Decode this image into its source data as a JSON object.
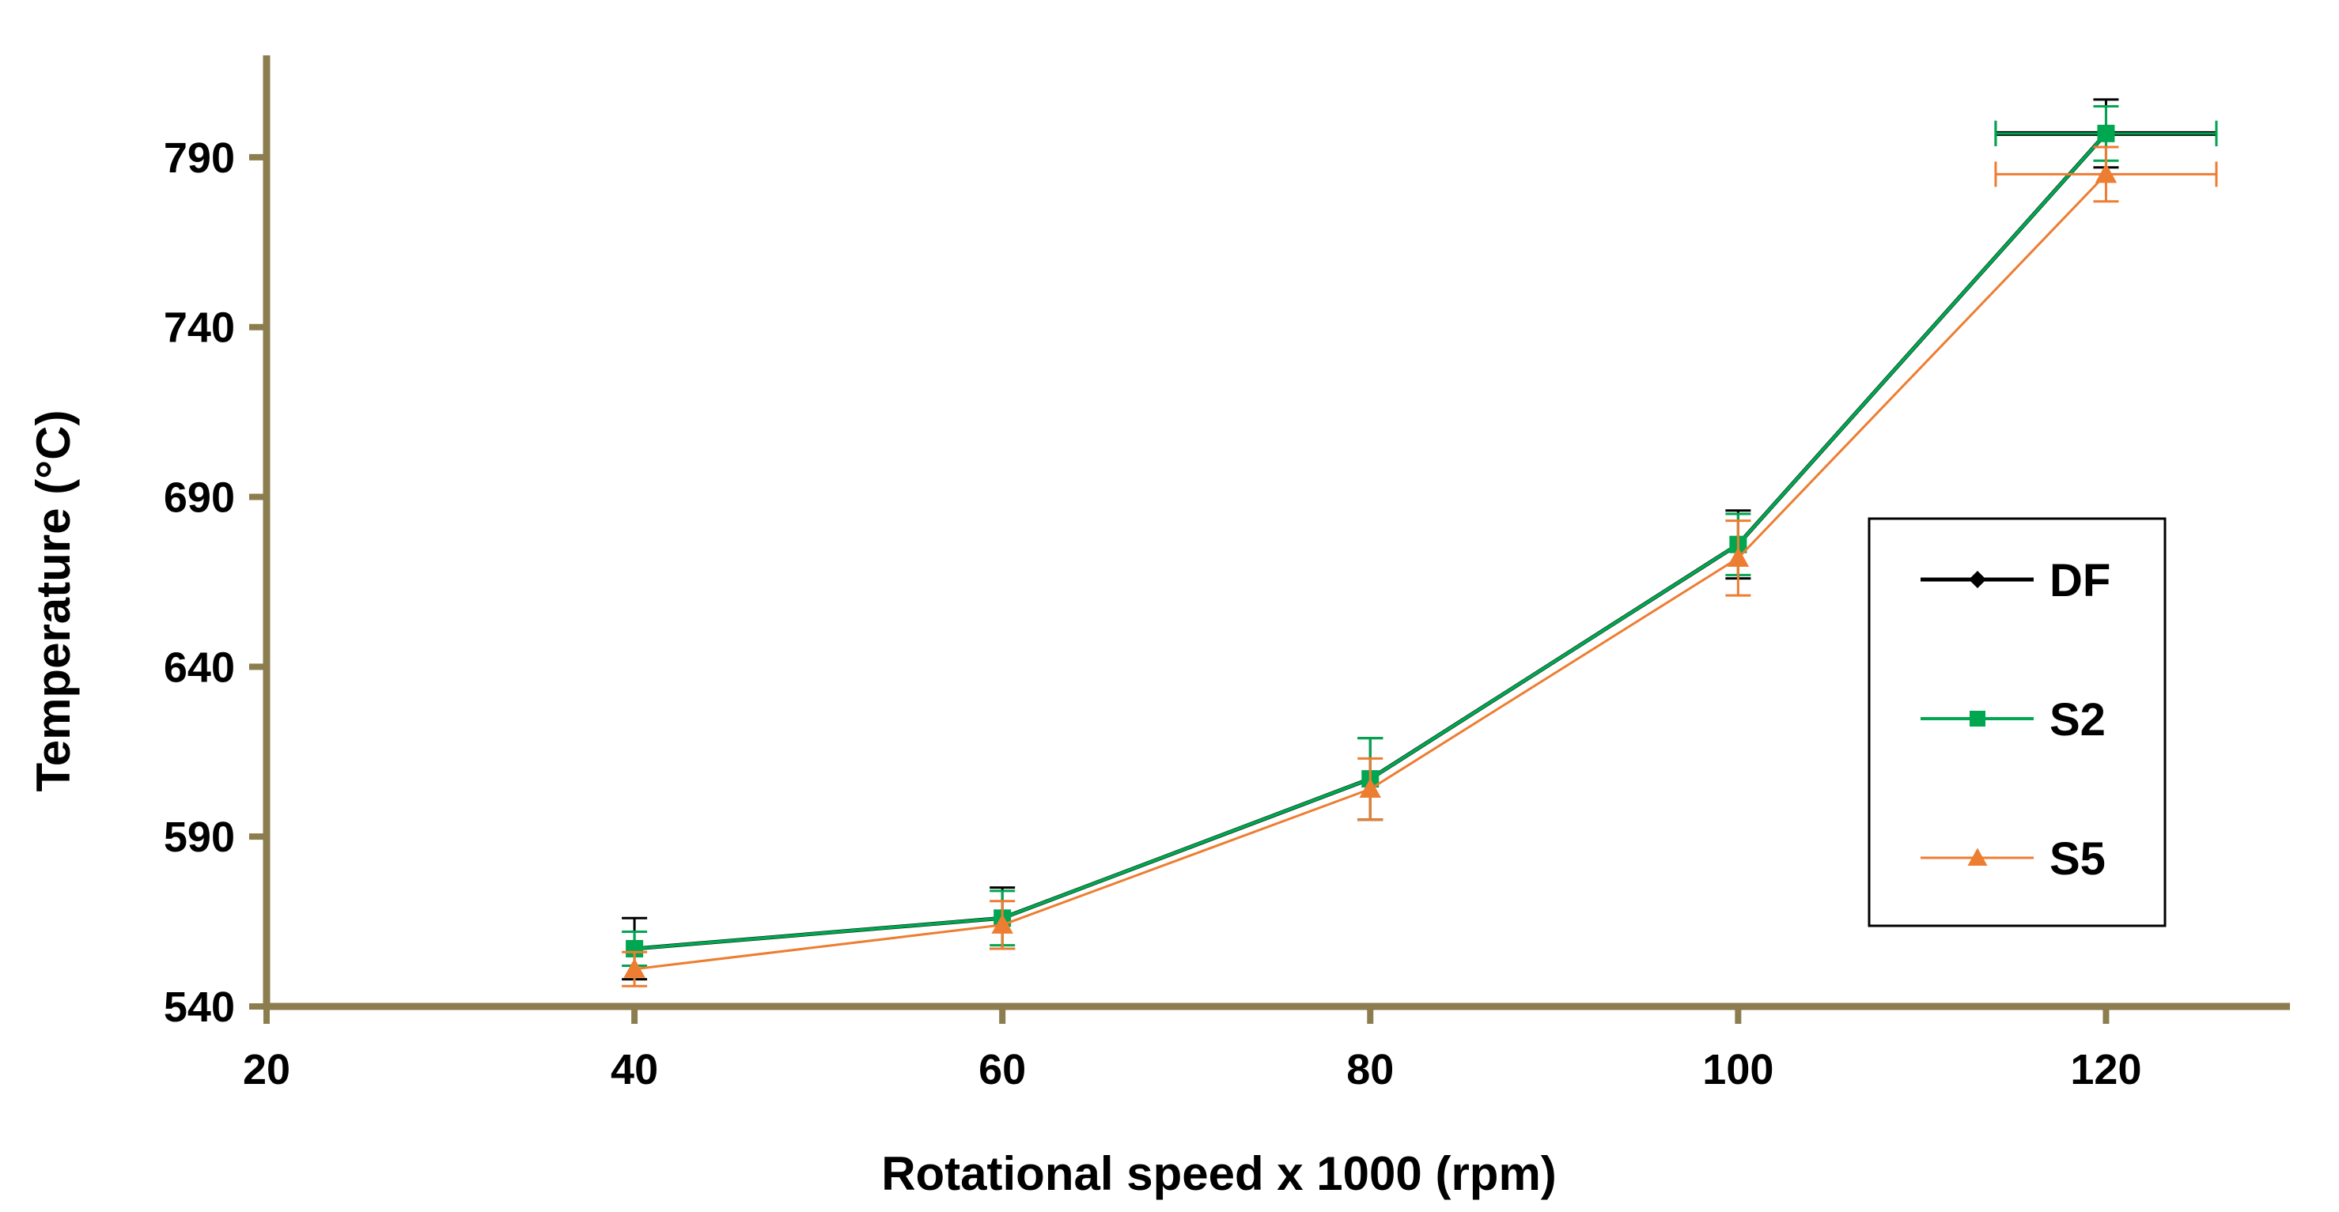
{
  "chart_data": {
    "type": "line",
    "title": "",
    "xlabel": "Rotational speed x 1000 (rpm)",
    "ylabel": "Temperature (°C)",
    "xlim": [
      20,
      130
    ],
    "ylim": [
      540,
      820
    ],
    "x_ticks": [
      20,
      40,
      60,
      80,
      100,
      120
    ],
    "y_ticks": [
      540,
      590,
      640,
      690,
      740,
      790
    ],
    "grid": false,
    "legend_position": "right",
    "axis_color": "#8C7D4E",
    "x": [
      40,
      60,
      80,
      100,
      120
    ],
    "series": [
      {
        "name": "DF",
        "color": "#000000",
        "marker": "diamond",
        "values": [
          557,
          566,
          607,
          676,
          797
        ],
        "y_error": [
          9,
          9,
          12,
          10,
          10
        ],
        "x_error": [
          0,
          0,
          0,
          0,
          6
        ]
      },
      {
        "name": "S2",
        "color": "#00A650",
        "marker": "square",
        "values": [
          557,
          566,
          607,
          676,
          797
        ],
        "y_error": [
          5,
          8,
          12,
          9,
          8
        ],
        "x_error": [
          0,
          0,
          0,
          0,
          6
        ]
      },
      {
        "name": "S5",
        "color": "#ED7D31",
        "marker": "triangle",
        "values": [
          551,
          564,
          604,
          672,
          785
        ],
        "y_error": [
          5,
          7,
          9,
          11,
          8
        ],
        "x_error": [
          0,
          0,
          0,
          0,
          6
        ]
      }
    ]
  }
}
